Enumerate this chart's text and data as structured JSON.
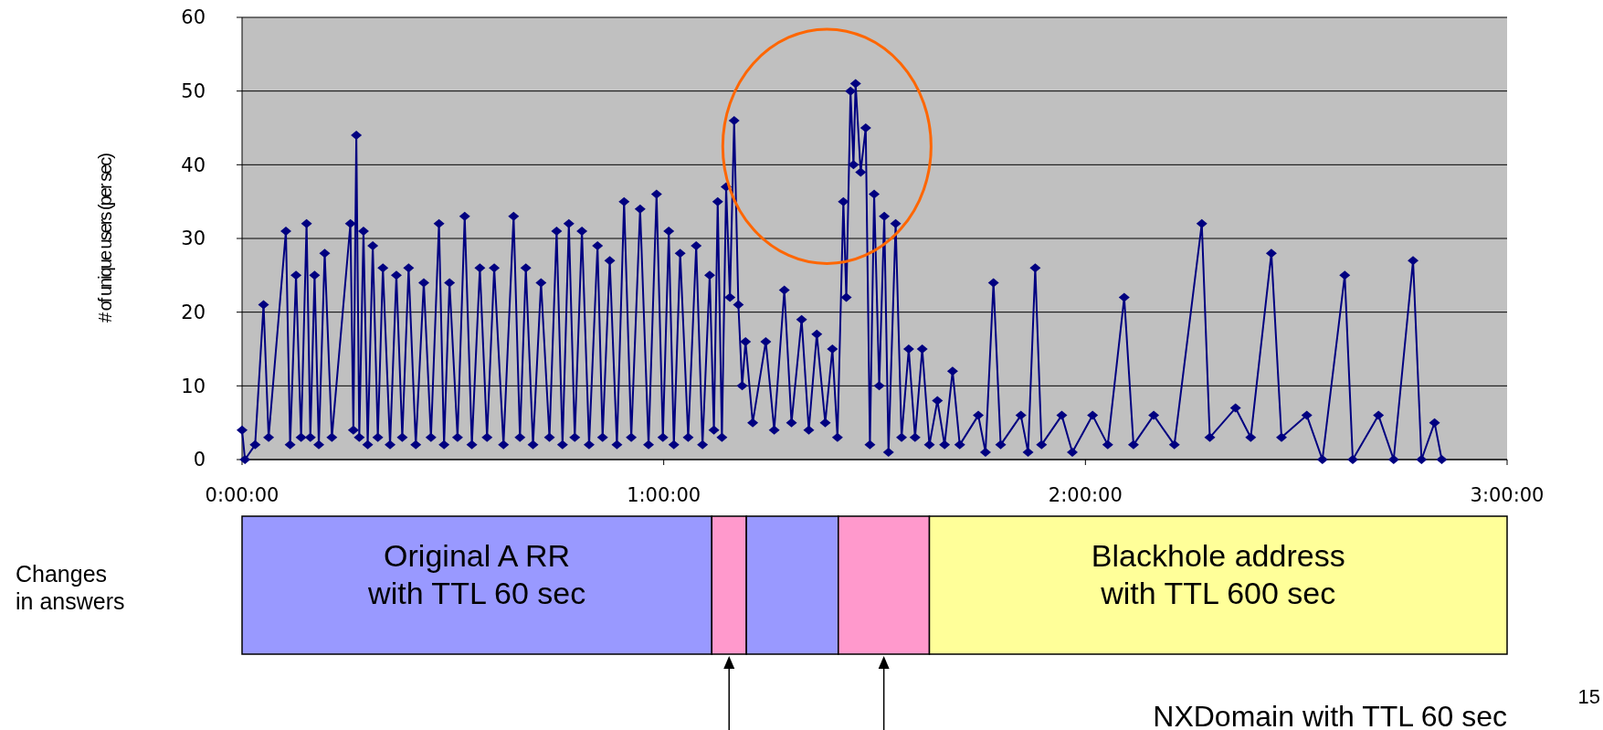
{
  "chart_data": {
    "type": "line",
    "ylabel": "# of unique users (per sec)",
    "xlim": [
      0,
      3
    ],
    "xticks": [
      {
        "value": 0,
        "label": "0:00:00"
      },
      {
        "value": 1,
        "label": "1:00:00"
      },
      {
        "value": 2,
        "label": "2:00:00"
      },
      {
        "value": 3,
        "label": "3:00:00"
      }
    ],
    "ylim": [
      0,
      60
    ],
    "yticks": [
      0,
      10,
      20,
      30,
      40,
      50,
      60
    ],
    "grid": "y",
    "marker": "diamond",
    "line_style": "solid",
    "series": [
      {
        "color": "#000080",
        "x": [
          0,
          0.007,
          0.031,
          0.051,
          0.063,
          0.104,
          0.114,
          0.128,
          0.14,
          0.153,
          0.162,
          0.172,
          0.182,
          0.196,
          0.213,
          0.257,
          0.264,
          0.271,
          0.278,
          0.288,
          0.298,
          0.31,
          0.322,
          0.334,
          0.351,
          0.366,
          0.38,
          0.395,
          0.412,
          0.431,
          0.448,
          0.467,
          0.479,
          0.492,
          0.511,
          0.528,
          0.545,
          0.564,
          0.581,
          0.598,
          0.62,
          0.644,
          0.659,
          0.673,
          0.69,
          0.709,
          0.729,
          0.746,
          0.76,
          0.775,
          0.789,
          0.806,
          0.823,
          0.843,
          0.855,
          0.872,
          0.889,
          0.906,
          0.923,
          0.944,
          0.964,
          0.983,
          0.998,
          1.012,
          1.024,
          1.039,
          1.058,
          1.077,
          1.092,
          1.109,
          1.119,
          1.128,
          1.138,
          1.148,
          1.157,
          1.167,
          1.177,
          1.186,
          1.194,
          1.211,
          1.242,
          1.262,
          1.286,
          1.303,
          1.327,
          1.344,
          1.363,
          1.383,
          1.4,
          1.412,
          1.426,
          1.433,
          1.443,
          1.45,
          1.455,
          1.467,
          1.479,
          1.489,
          1.499,
          1.511,
          1.523,
          1.533,
          1.55,
          1.564,
          1.581,
          1.596,
          1.613,
          1.63,
          1.649,
          1.666,
          1.685,
          1.702,
          1.746,
          1.763,
          1.782,
          1.799,
          1.847,
          1.864,
          1.881,
          1.896,
          1.944,
          1.969,
          2.017,
          2.053,
          2.092,
          2.114,
          2.162,
          2.211,
          2.276,
          2.295,
          2.356,
          2.392,
          2.441,
          2.465,
          2.525,
          2.562,
          2.615,
          2.634,
          2.695,
          2.731,
          2.777,
          2.797,
          2.828,
          2.845
        ],
        "values": [
          4,
          0,
          2,
          21,
          3,
          31,
          2,
          25,
          3,
          32,
          3,
          25,
          2,
          28,
          3,
          32,
          4,
          44,
          3,
          31,
          2,
          29,
          3,
          26,
          2,
          25,
          3,
          26,
          2,
          24,
          3,
          32,
          2,
          24,
          3,
          33,
          2,
          26,
          3,
          26,
          2,
          33,
          3,
          26,
          2,
          24,
          3,
          31,
          2,
          32,
          3,
          31,
          2,
          29,
          3,
          27,
          2,
          35,
          3,
          34,
          2,
          36,
          3,
          31,
          2,
          28,
          3,
          29,
          2,
          25,
          4,
          35,
          3,
          37,
          22,
          46,
          21,
          10,
          16,
          5,
          16,
          4,
          23,
          5,
          19,
          4,
          17,
          5,
          15,
          3,
          35,
          22,
          50,
          40,
          51,
          39,
          45,
          2,
          36,
          10,
          33,
          1,
          32,
          3,
          15,
          3,
          15,
          2,
          8,
          2,
          12,
          2,
          6,
          1,
          24,
          2,
          6,
          1,
          26,
          2,
          6,
          1,
          6,
          2,
          22,
          2,
          6,
          2,
          32,
          3,
          7,
          3,
          28,
          3,
          6,
          0,
          25,
          0,
          6,
          0,
          27,
          0,
          5,
          0
        ]
      }
    ],
    "annotations": [
      "Changes\nin answers",
      "Original A RR\nwith TTL 60 sec",
      "Blackhole address\nwith TTL 600 sec",
      "NXDomain with TTL 60 sec",
      "15"
    ]
  }
}
